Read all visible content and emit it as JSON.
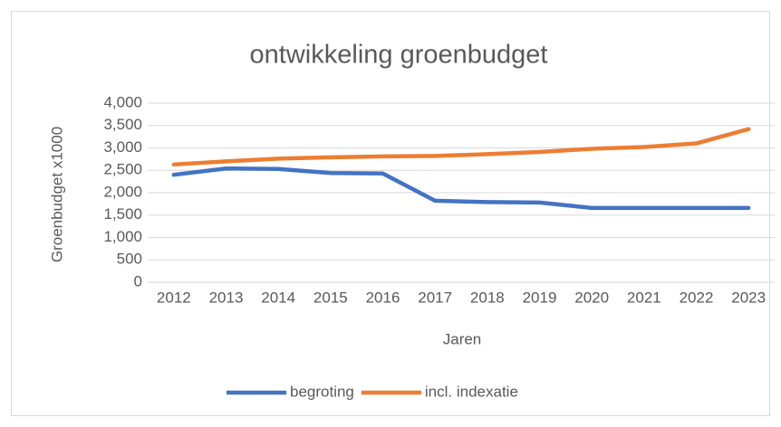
{
  "chart_data": {
    "type": "line",
    "title": "ontwikkeling groenbudget",
    "x_label": "Jaren",
    "y_label": "Groenbudget x1000",
    "categories": [
      "2012",
      "2013",
      "2014",
      "2015",
      "2016",
      "2017",
      "2018",
      "2019",
      "2020",
      "2021",
      "2022",
      "2023"
    ],
    "series": [
      {
        "name": "begroting",
        "color": "#4472c4",
        "values": [
          2400,
          2540,
          2530,
          2440,
          2430,
          1820,
          1790,
          1780,
          1660,
          1660,
          1660,
          1660
        ]
      },
      {
        "name": "incl. indexatie",
        "color": "#ed7d31",
        "values": [
          2630,
          2700,
          2760,
          2790,
          2810,
          2820,
          2860,
          2910,
          2980,
          3020,
          3100,
          3420
        ]
      }
    ],
    "ylim": [
      0,
      4000
    ],
    "yticks": [
      0,
      500,
      {
        "value": 1000,
        "label": "1,000"
      },
      {
        "value": 1500,
        "label": "1,500"
      },
      {
        "value": 2000,
        "label": "2,000"
      },
      {
        "value": 2500,
        "label": "2,500"
      },
      {
        "value": 3000,
        "label": "3,000"
      },
      {
        "value": 3500,
        "label": "3,500"
      },
      {
        "value": 4000,
        "label": "4,000"
      }
    ],
    "grid": true,
    "legend": "bottom"
  }
}
